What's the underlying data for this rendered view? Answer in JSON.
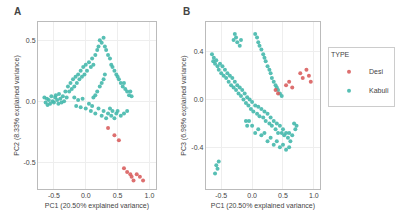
{
  "chart_data": [
    {
      "type": "scatter",
      "title": "A",
      "x_label": "PC1 (20.50% explained variance)",
      "y_label": "PC2 (8.33% explained variance)",
      "xlim": [
        -0.75,
        1.1
      ],
      "ylim": [
        -0.72,
        0.65
      ],
      "xticks": [
        -0.5,
        {
          "value": 0.0,
          "label": "0.0"
        },
        0.5,
        {
          "value": 1.0,
          "label": "1.0"
        }
      ],
      "yticks": [
        -0.5,
        {
          "value": 0.0,
          "label": "0.0"
        },
        0.5
      ],
      "grid": true,
      "series": [
        {
          "name": "Kabuli",
          "color": "#45B8AC",
          "marker": "circle",
          "x": [
            -0.65,
            -0.63,
            -0.61,
            -0.6,
            -0.58,
            -0.56,
            -0.54,
            -0.52,
            -0.5,
            -0.48,
            -0.47,
            -0.45,
            -0.43,
            -0.42,
            -0.4,
            -0.38,
            -0.36,
            -0.34,
            -0.32,
            -0.3,
            -0.28,
            -0.26,
            -0.24,
            -0.22,
            -0.2,
            -0.18,
            -0.16,
            -0.14,
            -0.12,
            -0.1,
            -0.08,
            -0.06,
            -0.04,
            -0.02,
            0.0,
            0.02,
            0.05,
            0.08,
            0.1,
            0.12,
            0.15,
            0.18,
            0.2,
            0.22,
            0.25,
            0.28,
            0.3,
            0.32,
            0.35,
            0.38,
            0.4,
            0.42,
            0.45,
            0.48,
            0.5,
            0.52,
            0.55,
            0.58,
            0.6,
            0.62,
            0.65,
            0.68,
            0.7,
            0.72,
            -0.18,
            -0.15,
            -0.12,
            -0.08,
            -0.05,
            0.0,
            0.05,
            0.08,
            0.1,
            0.15,
            0.2,
            0.25,
            0.28,
            0.32,
            0.35,
            0.38,
            0.4,
            0.42,
            0.45,
            0.48,
            0.5,
            0.55,
            0.6,
            0.65,
            0.3,
            0.28,
            0.25,
            0.22,
            0.18,
            0.15,
            0.12
          ],
          "values": [
            0.03,
            -0.01,
            0.02,
            -0.03,
            0.01,
            -0.02,
            0.04,
            0.0,
            -0.01,
            0.03,
            0.05,
            0.01,
            -0.02,
            0.06,
            0.02,
            -0.01,
            0.04,
            0.0,
            0.08,
            0.03,
            0.12,
            0.08,
            0.15,
            0.1,
            0.18,
            0.12,
            0.2,
            0.15,
            0.22,
            0.18,
            0.25,
            0.2,
            0.28,
            0.22,
            0.3,
            0.25,
            0.32,
            0.28,
            0.35,
            0.3,
            0.38,
            0.42,
            0.45,
            0.5,
            0.48,
            0.52,
            0.45,
            0.42,
            0.38,
            0.35,
            0.3,
            0.28,
            0.25,
            0.22,
            0.2,
            0.18,
            0.15,
            0.12,
            0.15,
            0.1,
            0.08,
            0.05,
            0.08,
            0.04,
            0.03,
            -0.04,
            0.01,
            -0.05,
            0.02,
            -0.06,
            -0.02,
            -0.08,
            -0.04,
            -0.1,
            -0.06,
            -0.12,
            -0.08,
            -0.14,
            -0.1,
            -0.06,
            -0.12,
            -0.08,
            -0.14,
            -0.1,
            -0.08,
            -0.12,
            -0.1,
            -0.08,
            0.22,
            0.18,
            0.15,
            0.12,
            0.08,
            0.05,
            0.03
          ]
        },
        {
          "name": "Desi",
          "color": "#D95F5F",
          "marker": "circle",
          "x": [
            0.45,
            0.52,
            0.6,
            0.65,
            0.7,
            0.72,
            0.75,
            0.8,
            0.85,
            0.9,
            0.35
          ],
          "values": [
            -0.28,
            -0.32,
            -0.55,
            -0.58,
            -0.6,
            -0.62,
            -0.65,
            -0.6,
            -0.62,
            -0.65,
            -0.22
          ]
        }
      ]
    },
    {
      "type": "scatter",
      "title": "B",
      "x_label": "PC1 (20.50% explained variance)",
      "y_label": "PC3 (6.98% explained variance)",
      "xlim": [
        -0.75,
        1.1
      ],
      "ylim": [
        -0.75,
        0.65
      ],
      "xticks": [
        -0.5,
        {
          "value": 0.0,
          "label": "0.0"
        },
        0.5,
        {
          "value": 1.0,
          "label": "1.0"
        }
      ],
      "yticks": [
        -0.4,
        {
          "value": 0.0,
          "label": "0.0"
        },
        0.4
      ],
      "grid": true,
      "legend": "right",
      "legend_title": "TYPE",
      "series": [
        {
          "name": "Kabuli",
          "color": "#45B8AC",
          "marker": "circle",
          "x": [
            -0.65,
            -0.63,
            -0.62,
            -0.6,
            -0.58,
            -0.56,
            -0.54,
            -0.52,
            -0.5,
            -0.48,
            -0.46,
            -0.44,
            -0.42,
            -0.4,
            -0.38,
            -0.36,
            -0.34,
            -0.32,
            -0.3,
            -0.28,
            -0.26,
            -0.24,
            -0.22,
            -0.2,
            -0.18,
            -0.16,
            -0.14,
            -0.12,
            -0.1,
            -0.08,
            -0.06,
            -0.04,
            -0.02,
            0.0,
            0.02,
            0.05,
            0.08,
            0.1,
            0.12,
            0.15,
            0.18,
            0.2,
            0.22,
            0.25,
            0.28,
            0.3,
            0.32,
            0.35,
            0.38,
            0.4,
            0.42,
            0.45,
            0.48,
            0.5,
            0.52,
            0.55,
            0.58,
            0.6,
            0.62,
            0.65,
            -0.3,
            -0.28,
            -0.26,
            -0.24,
            -0.2,
            -0.18,
            0.05,
            0.08,
            0.1,
            0.12,
            0.15,
            0.18,
            0.2,
            0.22,
            0.25,
            0.28,
            0.3,
            0.32,
            0.35,
            0.38,
            0.4,
            0.42,
            0.45,
            0.48,
            -0.58,
            -0.56,
            -0.54,
            -0.6,
            0.68,
            0.7,
            0.72,
            -0.1,
            -0.08,
            -0.05,
            0.0,
            0.05,
            0.1,
            0.15,
            0.2,
            0.25,
            0.3,
            0.35,
            0.4,
            0.45,
            0.5,
            0.55,
            0.6
          ],
          "values": [
            0.38,
            0.32,
            0.35,
            0.3,
            0.33,
            0.28,
            0.25,
            0.3,
            0.22,
            0.28,
            0.2,
            0.25,
            0.18,
            0.22,
            0.15,
            0.2,
            0.12,
            0.18,
            0.1,
            0.15,
            0.08,
            0.12,
            0.05,
            0.1,
            0.03,
            0.08,
            0.0,
            0.05,
            -0.03,
            0.02,
            -0.05,
            0.0,
            -0.08,
            -0.02,
            -0.1,
            -0.05,
            -0.12,
            -0.06,
            -0.14,
            -0.08,
            -0.15,
            -0.1,
            -0.18,
            -0.12,
            -0.2,
            -0.15,
            -0.22,
            -0.18,
            -0.25,
            -0.2,
            -0.28,
            -0.22,
            -0.28,
            -0.25,
            -0.3,
            -0.28,
            -0.32,
            -0.28,
            -0.35,
            -0.3,
            0.5,
            0.55,
            0.52,
            0.48,
            0.45,
            0.5,
            0.55,
            0.52,
            0.48,
            0.45,
            0.42,
            0.38,
            0.35,
            0.32,
            0.28,
            0.25,
            0.22,
            0.18,
            0.15,
            0.12,
            0.1,
            0.08,
            0.05,
            0.03,
            -0.55,
            -0.58,
            -0.52,
            -0.62,
            -0.2,
            -0.25,
            -0.22,
            -0.18,
            -0.22,
            -0.18,
            -0.22,
            -0.28,
            -0.25,
            -0.3,
            -0.28,
            -0.35,
            -0.32,
            -0.38,
            -0.35,
            -0.4,
            -0.38,
            -0.42,
            -0.4
          ]
        },
        {
          "name": "Desi",
          "color": "#D95F5F",
          "marker": "circle",
          "x": [
            0.78,
            0.82,
            0.88,
            0.92,
            0.95,
            0.38,
            0.42,
            0.55,
            0.6,
            0.65
          ],
          "values": [
            0.22,
            0.18,
            0.25,
            0.2,
            0.15,
            0.08,
            0.05,
            0.12,
            0.15,
            0.1
          ]
        }
      ]
    }
  ]
}
